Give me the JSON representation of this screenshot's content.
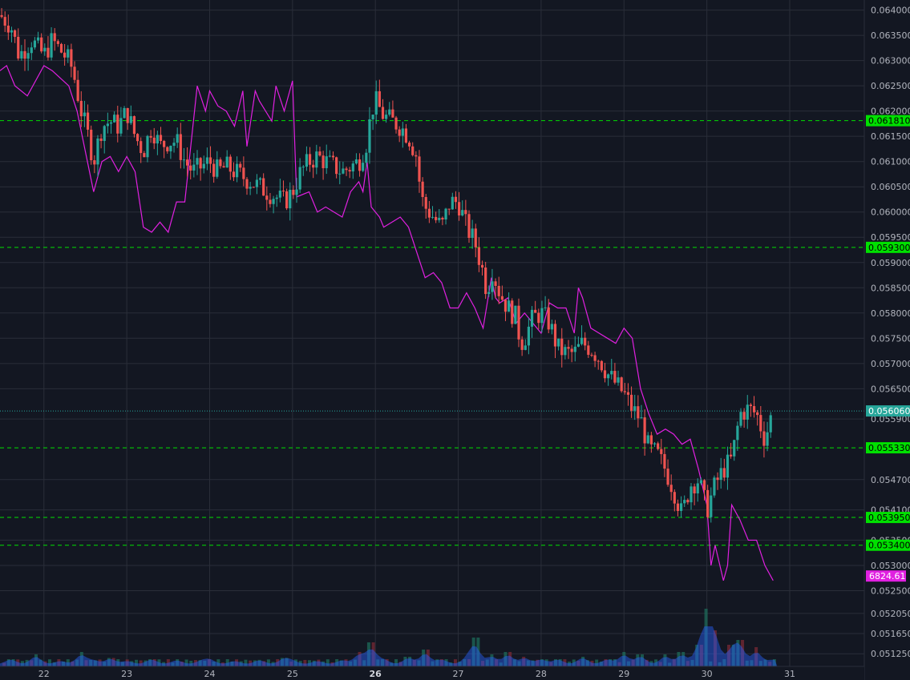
{
  "chart_data": {
    "type": "candlestick",
    "y_axis": {
      "ticks": [
        "0.064000",
        "0.063500",
        "0.063000",
        "0.062500",
        "0.062000",
        "0.061500",
        "0.061000",
        "0.060500",
        "0.060000",
        "0.059500",
        "0.059000",
        "0.058500",
        "0.058000",
        "0.057500",
        "0.057000",
        "0.056500",
        "0.055900",
        "0.054700",
        "0.054100",
        "0.053500",
        "0.053000",
        "0.052500",
        "0.052050",
        "0.051650",
        "0.051250"
      ],
      "ylim": [
        0.051,
        0.0642
      ]
    },
    "x_axis": {
      "ticks": [
        {
          "label": "22",
          "day": 22,
          "bold": false
        },
        {
          "label": "23",
          "day": 23,
          "bold": false
        },
        {
          "label": "24",
          "day": 24,
          "bold": false
        },
        {
          "label": "25",
          "day": 25,
          "bold": false
        },
        {
          "label": "26",
          "day": 26,
          "bold": true
        },
        {
          "label": "27",
          "day": 27,
          "bold": false
        },
        {
          "label": "28",
          "day": 28,
          "bold": false
        },
        {
          "label": "29",
          "day": 29,
          "bold": false
        },
        {
          "label": "30",
          "day": 30,
          "bold": false
        },
        {
          "label": "31",
          "day": 31,
          "bold": false
        }
      ],
      "xlim": [
        21.47,
        31.9
      ]
    },
    "horizontal_lines": [
      {
        "label": "0.061810",
        "value": 0.06181,
        "style": "dashed",
        "color": "#00e000"
      },
      {
        "label": "0.059300",
        "value": 0.0593,
        "style": "dashed",
        "color": "#00e000"
      },
      {
        "label": "0.056060",
        "value": 0.05606,
        "style": "dotted",
        "color": "#26a69a"
      },
      {
        "label": "0.055330",
        "value": 0.05533,
        "style": "dashed",
        "color": "#00e000"
      },
      {
        "label": "0.053950",
        "value": 0.05395,
        "style": "dashed",
        "color": "#00e000"
      },
      {
        "label": "0.053400",
        "value": 0.0534,
        "style": "dashed",
        "color": "#00e000"
      }
    ],
    "price_path": [
      [
        21.47,
        0.0639
      ],
      [
        21.6,
        0.0637
      ],
      [
        21.7,
        0.0631
      ],
      [
        21.85,
        0.0634
      ],
      [
        22.0,
        0.0631
      ],
      [
        22.1,
        0.0634
      ],
      [
        22.2,
        0.0632
      ],
      [
        22.3,
        0.063
      ],
      [
        22.35,
        0.0628
      ],
      [
        22.45,
        0.062
      ],
      [
        22.55,
        0.0614
      ],
      [
        22.6,
        0.061
      ],
      [
        22.7,
        0.0617
      ],
      [
        22.8,
        0.0618
      ],
      [
        22.9,
        0.0617
      ],
      [
        23.0,
        0.062
      ],
      [
        23.1,
        0.0615
      ],
      [
        23.2,
        0.0612
      ],
      [
        23.3,
        0.0617
      ],
      [
        23.4,
        0.0613
      ],
      [
        23.5,
        0.0614
      ],
      [
        23.6,
        0.0614
      ],
      [
        23.7,
        0.061
      ],
      [
        23.8,
        0.0608
      ],
      [
        23.9,
        0.0609
      ],
      [
        24.0,
        0.061
      ],
      [
        24.1,
        0.0608
      ],
      [
        24.2,
        0.0609
      ],
      [
        24.3,
        0.0608
      ],
      [
        24.4,
        0.0607
      ],
      [
        24.5,
        0.0606
      ],
      [
        24.6,
        0.0605
      ],
      [
        24.7,
        0.0604
      ],
      [
        24.8,
        0.0603
      ],
      [
        24.9,
        0.0602
      ],
      [
        25.0,
        0.0604
      ],
      [
        25.1,
        0.0608
      ],
      [
        25.2,
        0.061
      ],
      [
        25.3,
        0.0611
      ],
      [
        25.4,
        0.061
      ],
      [
        25.5,
        0.0609
      ],
      [
        25.6,
        0.0608
      ],
      [
        25.7,
        0.0609
      ],
      [
        25.8,
        0.061
      ],
      [
        25.9,
        0.0614
      ],
      [
        25.95,
        0.062
      ],
      [
        26.0,
        0.0622
      ],
      [
        26.1,
        0.0619
      ],
      [
        26.2,
        0.0618
      ],
      [
        26.3,
        0.0617
      ],
      [
        26.4,
        0.0615
      ],
      [
        26.5,
        0.0611
      ],
      [
        26.55,
        0.0603
      ],
      [
        26.6,
        0.0601
      ],
      [
        26.7,
        0.0599
      ],
      [
        26.8,
        0.0597
      ],
      [
        26.9,
        0.0602
      ],
      [
        27.0,
        0.0602
      ],
      [
        27.1,
        0.0597
      ],
      [
        27.2,
        0.0594
      ],
      [
        27.3,
        0.0588
      ],
      [
        27.35,
        0.0584
      ],
      [
        27.4,
        0.0589
      ],
      [
        27.5,
        0.0584
      ],
      [
        27.6,
        0.0581
      ],
      [
        27.7,
        0.0579
      ],
      [
        27.75,
        0.0574
      ],
      [
        27.8,
        0.0575
      ],
      [
        27.9,
        0.0579
      ],
      [
        28.0,
        0.058
      ],
      [
        28.1,
        0.0578
      ],
      [
        28.2,
        0.0573
      ],
      [
        28.3,
        0.0572
      ],
      [
        28.4,
        0.0572
      ],
      [
        28.5,
        0.0574
      ],
      [
        28.6,
        0.0573
      ],
      [
        28.7,
        0.0571
      ],
      [
        28.8,
        0.0568
      ],
      [
        28.9,
        0.0566
      ],
      [
        29.0,
        0.0564
      ],
      [
        29.1,
        0.0561
      ],
      [
        29.2,
        0.0559
      ],
      [
        29.3,
        0.0553
      ],
      [
        29.4,
        0.0552
      ],
      [
        29.5,
        0.0549
      ],
      [
        29.6,
        0.0545
      ],
      [
        29.7,
        0.054
      ],
      [
        29.8,
        0.0546
      ],
      [
        29.9,
        0.0547
      ],
      [
        30.0,
        0.0541
      ],
      [
        30.1,
        0.0546
      ],
      [
        30.2,
        0.0549
      ],
      [
        30.3,
        0.0551
      ],
      [
        30.4,
        0.056
      ],
      [
        30.5,
        0.0561
      ],
      [
        30.6,
        0.056
      ],
      [
        30.7,
        0.0555
      ],
      [
        30.8,
        0.0561
      ]
    ],
    "overlay_series": {
      "color": "#e020e0",
      "label": "6824.61",
      "path": [
        [
          21.47,
          0.0628
        ],
        [
          21.55,
          0.0629
        ],
        [
          21.65,
          0.0625
        ],
        [
          21.8,
          0.0623
        ],
        [
          22.0,
          0.0629
        ],
        [
          22.1,
          0.0628
        ],
        [
          22.3,
          0.0625
        ],
        [
          22.4,
          0.062
        ],
        [
          22.5,
          0.0612
        ],
        [
          22.6,
          0.0604
        ],
        [
          22.7,
          0.061
        ],
        [
          22.8,
          0.0611
        ],
        [
          22.9,
          0.0608
        ],
        [
          23.0,
          0.0611
        ],
        [
          23.1,
          0.0608
        ],
        [
          23.2,
          0.0597
        ],
        [
          23.3,
          0.0596
        ],
        [
          23.4,
          0.0598
        ],
        [
          23.5,
          0.0596
        ],
        [
          23.6,
          0.0602
        ],
        [
          23.7,
          0.0602
        ],
        [
          23.85,
          0.0625
        ],
        [
          23.95,
          0.062
        ],
        [
          24.0,
          0.0624
        ],
        [
          24.1,
          0.0621
        ],
        [
          24.2,
          0.062
        ],
        [
          24.3,
          0.0617
        ],
        [
          24.4,
          0.0624
        ],
        [
          24.45,
          0.0613
        ],
        [
          24.55,
          0.0624
        ],
        [
          24.6,
          0.0622
        ],
        [
          24.75,
          0.0618
        ],
        [
          24.8,
          0.0625
        ],
        [
          24.9,
          0.062
        ],
        [
          25.0,
          0.0626
        ],
        [
          25.05,
          0.0603
        ],
        [
          25.2,
          0.0604
        ],
        [
          25.3,
          0.06
        ],
        [
          25.4,
          0.0601
        ],
        [
          25.5,
          0.06
        ],
        [
          25.6,
          0.0599
        ],
        [
          25.7,
          0.0604
        ],
        [
          25.8,
          0.0606
        ],
        [
          25.85,
          0.0604
        ],
        [
          25.9,
          0.061
        ],
        [
          25.95,
          0.0601
        ],
        [
          26.0,
          0.06
        ],
        [
          26.05,
          0.0599
        ],
        [
          26.1,
          0.0597
        ],
        [
          26.2,
          0.0598
        ],
        [
          26.3,
          0.0599
        ],
        [
          26.4,
          0.0597
        ],
        [
          26.5,
          0.0592
        ],
        [
          26.6,
          0.0587
        ],
        [
          26.7,
          0.0588
        ],
        [
          26.8,
          0.0586
        ],
        [
          26.9,
          0.0581
        ],
        [
          27.0,
          0.0581
        ],
        [
          27.1,
          0.0584
        ],
        [
          27.2,
          0.0581
        ],
        [
          27.3,
          0.0577
        ],
        [
          27.4,
          0.0587
        ],
        [
          27.45,
          0.0583
        ],
        [
          27.5,
          0.0582
        ],
        [
          27.6,
          0.0583
        ],
        [
          27.7,
          0.0578
        ],
        [
          27.8,
          0.058
        ],
        [
          27.9,
          0.0578
        ],
        [
          28.0,
          0.0576
        ],
        [
          28.1,
          0.0582
        ],
        [
          28.2,
          0.0581
        ],
        [
          28.3,
          0.0581
        ],
        [
          28.4,
          0.0576
        ],
        [
          28.45,
          0.0585
        ],
        [
          28.5,
          0.0583
        ],
        [
          28.6,
          0.0577
        ],
        [
          28.7,
          0.0576
        ],
        [
          28.8,
          0.0575
        ],
        [
          28.9,
          0.0574
        ],
        [
          29.0,
          0.0577
        ],
        [
          29.1,
          0.0575
        ],
        [
          29.2,
          0.0565
        ],
        [
          29.3,
          0.056
        ],
        [
          29.4,
          0.0556
        ],
        [
          29.5,
          0.0557
        ],
        [
          29.6,
          0.0556
        ],
        [
          29.7,
          0.0554
        ],
        [
          29.8,
          0.0555
        ],
        [
          29.9,
          0.0549
        ],
        [
          30.0,
          0.0542
        ],
        [
          30.05,
          0.053
        ],
        [
          30.1,
          0.0534
        ],
        [
          30.2,
          0.0527
        ],
        [
          30.25,
          0.053
        ],
        [
          30.3,
          0.0542
        ],
        [
          30.4,
          0.0539
        ],
        [
          30.5,
          0.0535
        ],
        [
          30.6,
          0.0535
        ],
        [
          30.7,
          0.053
        ],
        [
          30.8,
          0.0527
        ]
      ]
    },
    "volume": {
      "series": [
        {
          "name": "up",
          "color": "#26a69a"
        },
        {
          "name": "down",
          "color": "#ef5350"
        }
      ],
      "bars": [
        [
          21.6,
          0.3
        ],
        [
          21.9,
          0.5
        ],
        [
          22.2,
          0.2
        ],
        [
          22.45,
          0.6
        ],
        [
          22.6,
          0.25
        ],
        [
          22.8,
          0.35
        ],
        [
          23.0,
          0.2
        ],
        [
          23.3,
          0.3
        ],
        [
          23.6,
          0.25
        ],
        [
          23.9,
          0.2
        ],
        [
          24.0,
          0.3
        ],
        [
          24.3,
          0.2
        ],
        [
          24.6,
          0.25
        ],
        [
          24.9,
          0.35
        ],
        [
          25.0,
          0.2
        ],
        [
          25.3,
          0.2
        ],
        [
          25.6,
          0.25
        ],
        [
          25.8,
          0.6
        ],
        [
          25.95,
          1.0
        ],
        [
          26.1,
          0.3
        ],
        [
          26.4,
          0.4
        ],
        [
          26.6,
          0.7
        ],
        [
          26.8,
          0.3
        ],
        [
          27.1,
          0.3
        ],
        [
          27.2,
          1.2
        ],
        [
          27.4,
          0.5
        ],
        [
          27.6,
          0.6
        ],
        [
          27.8,
          0.4
        ],
        [
          28.0,
          0.3
        ],
        [
          28.2,
          0.3
        ],
        [
          28.5,
          0.4
        ],
        [
          28.8,
          0.3
        ],
        [
          29.0,
          0.6
        ],
        [
          29.2,
          0.5
        ],
        [
          29.5,
          0.5
        ],
        [
          29.7,
          0.6
        ],
        [
          29.9,
          0.9
        ],
        [
          30.0,
          2.4
        ],
        [
          30.1,
          1.5
        ],
        [
          30.3,
          0.9
        ],
        [
          30.4,
          1.1
        ],
        [
          30.6,
          0.8
        ],
        [
          30.8,
          0.3
        ]
      ]
    }
  }
}
